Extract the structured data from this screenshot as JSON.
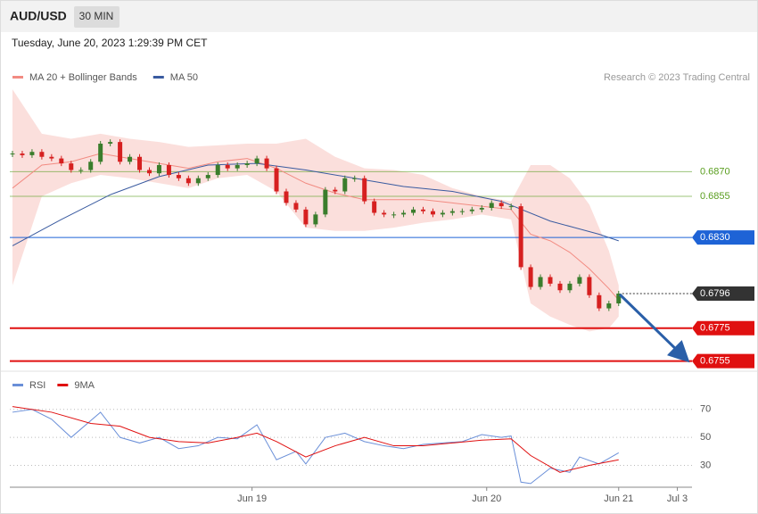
{
  "header": {
    "symbol": "AUD/USD",
    "interval": "30 MIN",
    "timestamp": "Tuesday, June 20, 2023 1:29:39 PM CET"
  },
  "chart_data": [
    {
      "type": "candlestick",
      "source": "Research © 2023 Trading Central",
      "xlim": [
        0,
        139
      ],
      "ylim": [
        0.6751,
        0.6939
      ],
      "up_color": "#3a7d2c",
      "down_color": "#d62020",
      "x": [
        0,
        2,
        4,
        6,
        8,
        10,
        12,
        14,
        16,
        18,
        20,
        22,
        24,
        26,
        28,
        30,
        32,
        34,
        36,
        38,
        40,
        42,
        44,
        46,
        48,
        50,
        52,
        54,
        56,
        58,
        60,
        62,
        64,
        66,
        68,
        70,
        72,
        74,
        76,
        78,
        80,
        82,
        84,
        86,
        88,
        90,
        92,
        94,
        96,
        98,
        100,
        102,
        104,
        106,
        108,
        110,
        112,
        114,
        116,
        118,
        120,
        122,
        124
      ],
      "close": [
        0.6881,
        0.688,
        0.6882,
        0.6879,
        0.6878,
        0.6875,
        0.6871,
        0.6871,
        0.6876,
        0.6887,
        0.6888,
        0.6876,
        0.6879,
        0.6871,
        0.6869,
        0.6874,
        0.6868,
        0.6866,
        0.6863,
        0.6866,
        0.6868,
        0.6874,
        0.6872,
        0.6874,
        0.6875,
        0.6878,
        0.6872,
        0.6858,
        0.6851,
        0.6847,
        0.6838,
        0.6844,
        0.6859,
        0.6858,
        0.6866,
        0.6866,
        0.6852,
        0.6845,
        0.6844,
        0.6844,
        0.6845,
        0.6847,
        0.6846,
        0.6844,
        0.6845,
        0.6846,
        0.6846,
        0.6847,
        0.6848,
        0.6851,
        0.6849,
        0.6849,
        0.6812,
        0.68,
        0.6806,
        0.6802,
        0.6798,
        0.6802,
        0.6806,
        0.6795,
        0.6787,
        0.679,
        0.6796
      ],
      "series": [
        {
          "name": "MA 20 + Bollinger Bands",
          "color": "#f28b82",
          "x": [
            0,
            6,
            12,
            18,
            24,
            30,
            36,
            42,
            48,
            54,
            60,
            66,
            72,
            78,
            84,
            90,
            96,
            102,
            106,
            110,
            114,
            118,
            122,
            124
          ],
          "values": [
            0.686,
            0.6874,
            0.6876,
            0.6881,
            0.6878,
            0.6875,
            0.6872,
            0.6876,
            0.6878,
            0.6872,
            0.6863,
            0.6857,
            0.6853,
            0.6853,
            0.6853,
            0.6851,
            0.6849,
            0.6847,
            0.6832,
            0.6828,
            0.6821,
            0.6811,
            0.6799,
            0.6792
          ],
          "upper": [
            0.692,
            0.6893,
            0.689,
            0.6893,
            0.689,
            0.6888,
            0.6885,
            0.6886,
            0.6887,
            0.6887,
            0.689,
            0.6879,
            0.6872,
            0.6871,
            0.6868,
            0.686,
            0.6855,
            0.6852,
            0.6874,
            0.6874,
            0.6866,
            0.685,
            0.6822,
            0.6801
          ],
          "lower": [
            0.6801,
            0.6855,
            0.6863,
            0.6868,
            0.6866,
            0.6863,
            0.686,
            0.6866,
            0.6868,
            0.6858,
            0.6836,
            0.6834,
            0.6834,
            0.6836,
            0.6839,
            0.6841,
            0.6844,
            0.6841,
            0.679,
            0.6782,
            0.6777,
            0.6773,
            0.6775,
            0.6782
          ]
        },
        {
          "name": "MA 50",
          "color": "#3a5ba0",
          "x": [
            0,
            10,
            20,
            30,
            40,
            50,
            60,
            70,
            80,
            90,
            100,
            110,
            120,
            124
          ],
          "values": [
            0.6825,
            0.6841,
            0.6856,
            0.6867,
            0.6874,
            0.6875,
            0.6871,
            0.6866,
            0.6861,
            0.6858,
            0.6852,
            0.684,
            0.6832,
            0.6828
          ]
        }
      ],
      "levels": [
        {
          "value": 0.687,
          "label": "0.6870",
          "color": "#5a9e1f",
          "line": "solid",
          "label_style": "text"
        },
        {
          "value": 0.6855,
          "label": "0.6855",
          "color": "#5a9e1f",
          "line": "solid",
          "label_style": "text"
        },
        {
          "value": 0.683,
          "label": "0.6830",
          "color": "#1e63d6",
          "line": "solid",
          "label_style": "box"
        },
        {
          "value": 0.6796,
          "label": "0.6796",
          "color": "#333333",
          "line": "dotted",
          "label_style": "box"
        },
        {
          "value": 0.6775,
          "label": "0.6775",
          "color": "#e01010",
          "line": "thick",
          "label_style": "box"
        },
        {
          "value": 0.6755,
          "label": "0.6755",
          "color": "#e01010",
          "line": "thick",
          "label_style": "box"
        }
      ]
    },
    {
      "type": "line",
      "xlim": [
        0,
        139
      ],
      "ylim": [
        15,
        82
      ],
      "yticks": [
        30,
        50,
        70
      ],
      "grid": true,
      "xticks": [
        {
          "value": 49,
          "label": "Jun 19"
        },
        {
          "value": 97,
          "label": "Jun 20"
        },
        {
          "value": 124,
          "label": "Jun 21"
        },
        {
          "value": 136,
          "label": "Jul 3"
        }
      ],
      "series": [
        {
          "name": "RSI",
          "color": "#6a8fd8",
          "x": [
            0,
            4,
            8,
            12,
            18,
            22,
            26,
            30,
            34,
            38,
            42,
            46,
            50,
            54,
            58,
            60,
            64,
            68,
            72,
            76,
            80,
            84,
            88,
            92,
            96,
            100,
            102,
            104,
            106,
            110,
            114,
            116,
            120,
            124
          ],
          "values": [
            68,
            70,
            63,
            50,
            68,
            50,
            46,
            50,
            42,
            44,
            50,
            49,
            59,
            34,
            40,
            31,
            50,
            53,
            47,
            44,
            42,
            45,
            46,
            47,
            52,
            50,
            51,
            18,
            17,
            28,
            25,
            36,
            31,
            39
          ]
        },
        {
          "name": "9MA",
          "color": "#e01010",
          "x": [
            0,
            8,
            16,
            22,
            28,
            34,
            40,
            46,
            50,
            54,
            60,
            66,
            72,
            78,
            84,
            90,
            96,
            102,
            106,
            112,
            118,
            124
          ],
          "values": [
            72,
            68,
            60,
            58,
            50,
            47,
            46,
            50,
            53,
            47,
            36,
            44,
            50,
            44,
            44,
            46,
            48,
            49,
            37,
            25,
            30,
            34
          ]
        }
      ]
    }
  ]
}
